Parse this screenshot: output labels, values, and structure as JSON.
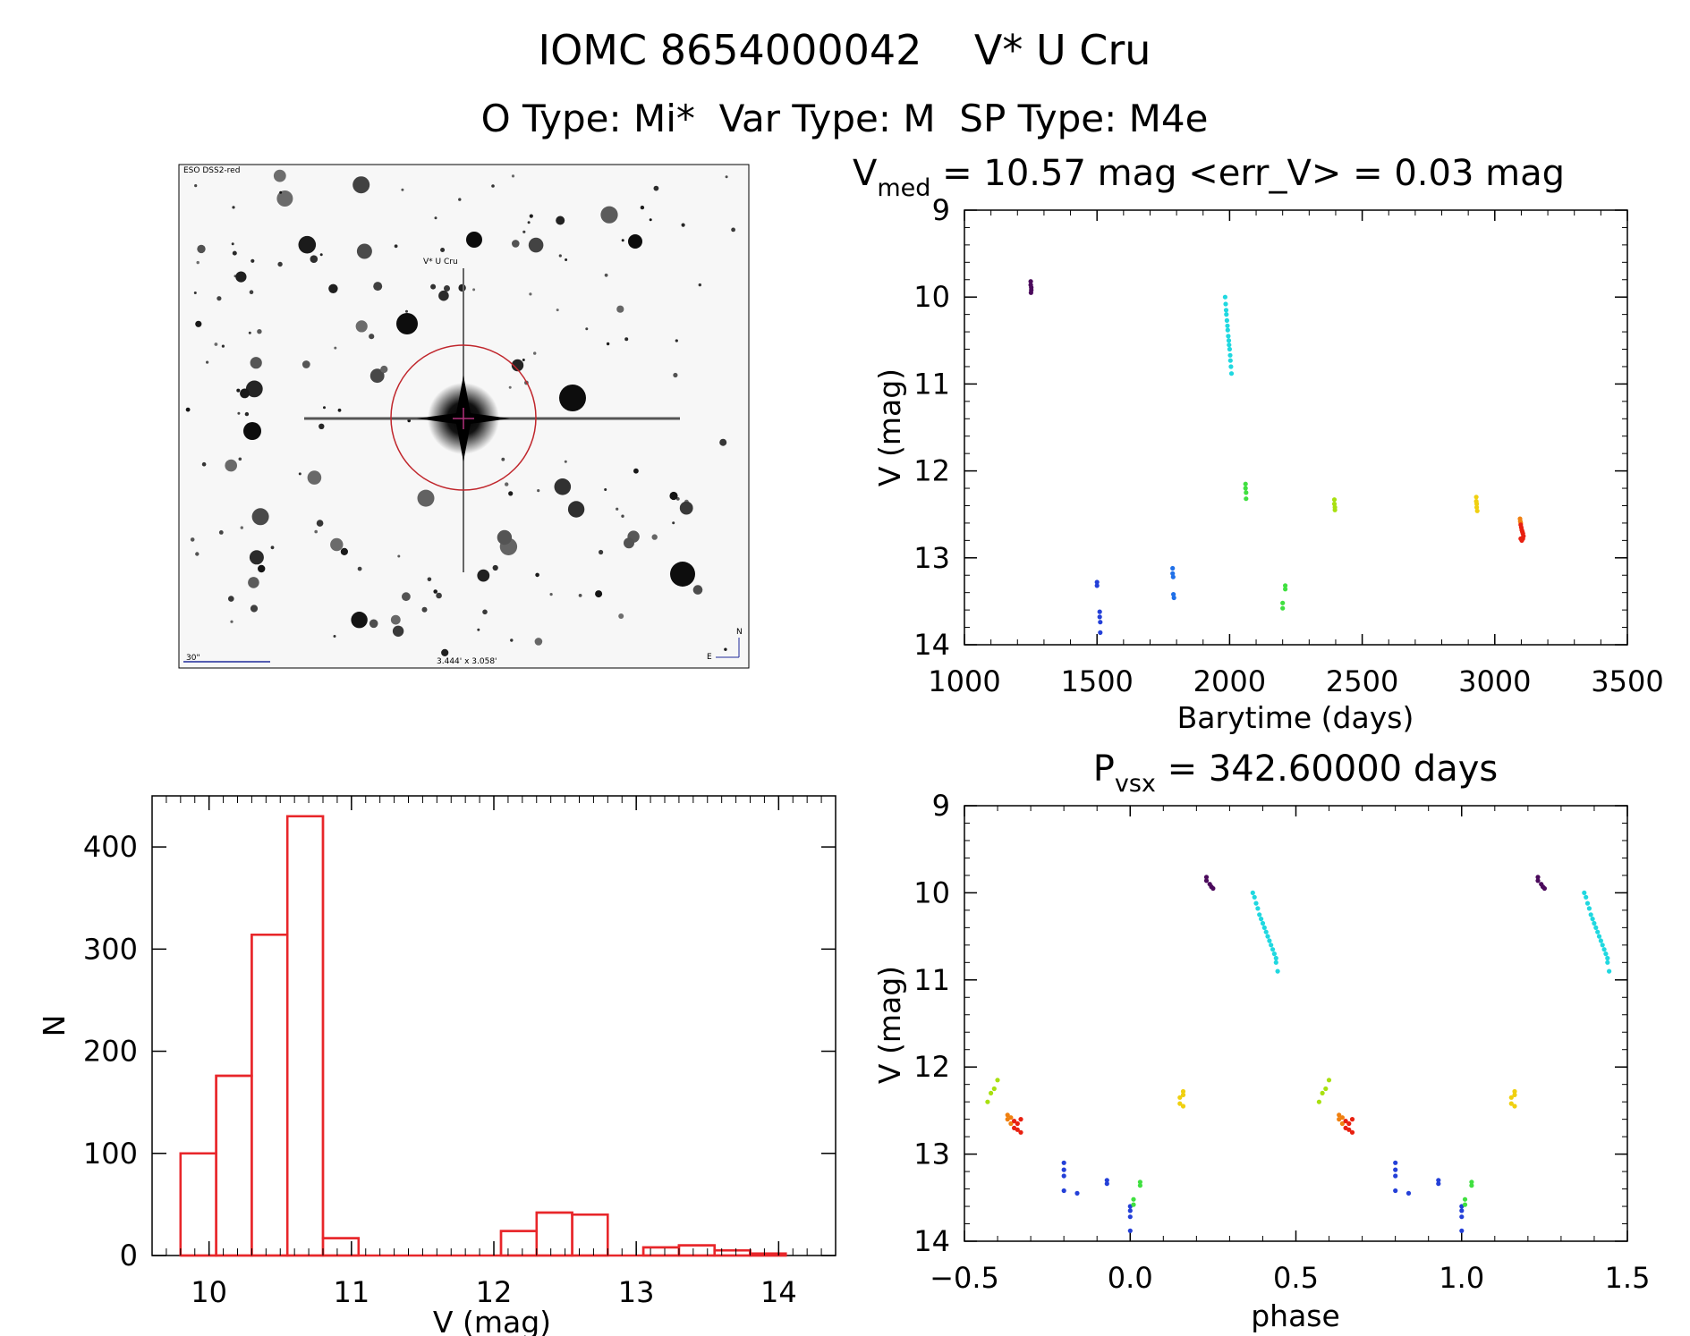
{
  "header": {
    "line1": "IOMC 8654000042    V* U Cru",
    "line2": "O Type: Mi*  Var Type: M  SP Type: M4e"
  },
  "finder": {
    "survey_label": "ESO DSS2-red",
    "target_label": "V* U Cru",
    "scale_label": "30\"",
    "fov_label": "3.444' x 3.058'",
    "north_label": "N",
    "east_label": "E",
    "target_circle_color": "#c0262c",
    "label_color": "#1f2a9a"
  },
  "colors": {
    "histogram": "#e8262a",
    "palette": [
      "#4b0a5c",
      "#2440d8",
      "#2070e8",
      "#20d8e0",
      "#20e8a8",
      "#40e040",
      "#a8e010",
      "#f0d010",
      "#f08010",
      "#e82010"
    ]
  },
  "chart_data": [
    {
      "type": "scatter",
      "id": "lightcurve",
      "title": "V_med = 10.57 mag <err_V> = 0.03 mag",
      "title_parts": {
        "symbol": "V",
        "subscript": "med",
        "text": " = 10.57 mag <err_V> = 0.03 mag"
      },
      "xlabel": "Barytime (days)",
      "ylabel": "V (mag)",
      "xlim": [
        1000,
        3500
      ],
      "ylim": [
        9,
        14
      ],
      "y_inverted": true,
      "xticks": [
        1000,
        1500,
        2000,
        2500,
        3000,
        3500
      ],
      "yticks": [
        9,
        10,
        11,
        12,
        13,
        14
      ],
      "series": [
        {
          "color_index": 0,
          "x": [
            1250,
            1250,
            1252,
            1252,
            1251
          ],
          "y": [
            9.82,
            9.86,
            9.89,
            9.92,
            9.95
          ]
        },
        {
          "color_index": 1,
          "x": [
            1500,
            1500,
            1510,
            1510,
            1512,
            1512
          ],
          "y": [
            13.28,
            13.32,
            13.62,
            13.68,
            13.74,
            13.86
          ]
        },
        {
          "color_index": 2,
          "x": [
            1785,
            1785,
            1787,
            1788,
            1790
          ],
          "y": [
            13.12,
            13.18,
            13.22,
            13.42,
            13.46
          ]
        },
        {
          "color_index": 3,
          "x": [
            1983,
            1985,
            1987,
            1988,
            1990,
            1992,
            1993,
            1995,
            1997,
            1998,
            2000,
            2002,
            2003,
            2005,
            2007
          ],
          "y": [
            10.0,
            10.08,
            10.15,
            10.2,
            10.27,
            10.33,
            10.38,
            10.45,
            10.5,
            10.55,
            10.6,
            10.67,
            10.73,
            10.8,
            10.88
          ]
        },
        {
          "color_index": 5,
          "x": [
            2060,
            2060,
            2062,
            2062
          ],
          "y": [
            12.15,
            12.2,
            12.25,
            12.32
          ]
        },
        {
          "color_index": 5,
          "x": [
            2200,
            2200,
            2210,
            2210
          ],
          "y": [
            13.52,
            13.58,
            13.32,
            13.36
          ]
        },
        {
          "color_index": 6,
          "x": [
            2395,
            2395,
            2397,
            2397
          ],
          "y": [
            12.33,
            12.38,
            12.42,
            12.45
          ]
        },
        {
          "color_index": 7,
          "x": [
            2930,
            2930,
            2932,
            2932,
            2934
          ],
          "y": [
            12.3,
            12.35,
            12.38,
            12.42,
            12.46
          ]
        },
        {
          "color_index": 8,
          "x": [
            3095,
            3096,
            3098
          ],
          "y": [
            12.55,
            12.58,
            12.6
          ]
        },
        {
          "color_index": 9,
          "x": [
            3098,
            3100,
            3102,
            3104,
            3106,
            3108,
            3098,
            3102,
            3106
          ],
          "y": [
            12.62,
            12.65,
            12.68,
            12.7,
            12.72,
            12.75,
            12.78,
            12.8,
            12.78
          ]
        }
      ]
    },
    {
      "type": "scatter",
      "id": "phased",
      "title": "P_vsx = 342.60000 days",
      "title_parts": {
        "symbol": "P",
        "subscript": "vsx",
        "text": " = 342.60000 days"
      },
      "xlabel": "phase",
      "ylabel": "V (mag)",
      "xlim": [
        -0.5,
        1.5
      ],
      "ylim": [
        9,
        14
      ],
      "y_inverted": true,
      "xticks": [
        -0.5,
        0.0,
        0.5,
        1.0,
        1.5
      ],
      "xtick_labels": [
        "−0.5",
        "0.0",
        "0.5",
        "1.0",
        "1.5"
      ],
      "yticks": [
        9,
        10,
        11,
        12,
        13,
        14
      ],
      "series": [
        {
          "color_index": 0,
          "x": [
            0.23,
            0.23,
            0.24,
            0.245,
            0.25
          ],
          "y": [
            9.82,
            9.86,
            9.9,
            9.93,
            9.95
          ]
        },
        {
          "color_index": 3,
          "x": [
            0.37,
            0.375,
            0.38,
            0.385,
            0.39,
            0.395,
            0.4,
            0.405,
            0.41,
            0.415,
            0.42,
            0.425,
            0.43,
            0.435,
            0.44,
            0.44,
            0.445
          ],
          "y": [
            10.0,
            10.05,
            10.12,
            10.18,
            10.25,
            10.3,
            10.35,
            10.4,
            10.45,
            10.5,
            10.55,
            10.6,
            10.65,
            10.7,
            10.75,
            10.8,
            10.9
          ]
        },
        {
          "color_index": 6,
          "x": [
            -0.43,
            -0.42,
            -0.41,
            -0.4
          ],
          "y": [
            12.4,
            12.3,
            12.25,
            12.15
          ]
        },
        {
          "color_index": 8,
          "x": [
            -0.37,
            -0.37,
            -0.36,
            -0.36
          ],
          "y": [
            12.55,
            12.6,
            12.58,
            12.65
          ]
        },
        {
          "color_index": 9,
          "x": [
            -0.35,
            -0.35,
            -0.34,
            -0.34,
            -0.33,
            -0.33
          ],
          "y": [
            12.62,
            12.7,
            12.65,
            12.72,
            12.6,
            12.75
          ]
        },
        {
          "color_index": 1,
          "x": [
            -0.2,
            -0.2,
            -0.2,
            -0.2,
            -0.16
          ],
          "y": [
            13.1,
            13.18,
            13.25,
            13.42,
            13.45
          ]
        },
        {
          "color_index": 1,
          "x": [
            -0.07,
            -0.07
          ],
          "y": [
            13.3,
            13.34
          ]
        },
        {
          "color_index": 1,
          "x": [
            0.0,
            0.0,
            0.0,
            0.0
          ],
          "y": [
            13.6,
            13.65,
            13.72,
            13.88
          ]
        },
        {
          "color_index": 5,
          "x": [
            0.01,
            0.01,
            0.03,
            0.03
          ],
          "y": [
            13.52,
            13.58,
            13.32,
            13.36
          ]
        },
        {
          "color_index": 7,
          "x": [
            0.15,
            0.15,
            0.16,
            0.16,
            0.16
          ],
          "y": [
            12.35,
            12.42,
            12.28,
            12.32,
            12.45
          ]
        },
        {
          "color_index": 0,
          "x": [
            1.23,
            1.23,
            1.24,
            1.245,
            1.25
          ],
          "y": [
            9.82,
            9.86,
            9.9,
            9.93,
            9.95
          ]
        },
        {
          "color_index": 3,
          "x": [
            1.37,
            1.375,
            1.38,
            1.385,
            1.39,
            1.395,
            1.4,
            1.405,
            1.41,
            1.415,
            1.42,
            1.425,
            1.43,
            1.435,
            1.44,
            1.44,
            1.445
          ],
          "y": [
            10.0,
            10.05,
            10.12,
            10.18,
            10.25,
            10.3,
            10.35,
            10.4,
            10.45,
            10.5,
            10.55,
            10.6,
            10.65,
            10.7,
            10.75,
            10.8,
            10.9
          ]
        },
        {
          "color_index": 6,
          "x": [
            0.57,
            0.58,
            0.59,
            0.6
          ],
          "y": [
            12.4,
            12.3,
            12.25,
            12.15
          ]
        },
        {
          "color_index": 8,
          "x": [
            0.63,
            0.63,
            0.64,
            0.64
          ],
          "y": [
            12.55,
            12.6,
            12.58,
            12.65
          ]
        },
        {
          "color_index": 9,
          "x": [
            0.65,
            0.65,
            0.66,
            0.66,
            0.67,
            0.67
          ],
          "y": [
            12.62,
            12.7,
            12.65,
            12.72,
            12.6,
            12.75
          ]
        },
        {
          "color_index": 1,
          "x": [
            0.8,
            0.8,
            0.8,
            0.8,
            0.84
          ],
          "y": [
            13.1,
            13.18,
            13.25,
            13.42,
            13.45
          ]
        },
        {
          "color_index": 1,
          "x": [
            0.93,
            0.93
          ],
          "y": [
            13.3,
            13.34
          ]
        },
        {
          "color_index": 1,
          "x": [
            1.0,
            1.0,
            1.0,
            1.0
          ],
          "y": [
            13.6,
            13.65,
            13.72,
            13.88
          ]
        },
        {
          "color_index": 5,
          "x": [
            1.01,
            1.01,
            1.03,
            1.03
          ],
          "y": [
            13.52,
            13.58,
            13.32,
            13.36
          ]
        },
        {
          "color_index": 7,
          "x": [
            1.15,
            1.15,
            1.16,
            1.16,
            1.16
          ],
          "y": [
            12.35,
            12.42,
            12.28,
            12.32,
            12.45
          ]
        }
      ]
    },
    {
      "type": "bar",
      "id": "histogram",
      "xlabel": "V (mag)",
      "ylabel": "N",
      "xlim": [
        9.6,
        14.4
      ],
      "ylim": [
        0,
        450
      ],
      "xticks": [
        10,
        11,
        12,
        13,
        14
      ],
      "yticks": [
        0,
        100,
        200,
        300,
        400
      ],
      "bin_edges": [
        9.8,
        10.05,
        10.3,
        10.55,
        10.8,
        11.05,
        11.3,
        11.55,
        11.8,
        12.05,
        12.3,
        12.55,
        12.8,
        13.05,
        13.3,
        13.55,
        13.8,
        14.05
      ],
      "values": [
        100,
        176,
        314,
        430,
        17,
        0,
        0,
        0,
        0,
        24,
        42,
        40,
        0,
        8,
        10,
        5,
        2
      ]
    }
  ]
}
